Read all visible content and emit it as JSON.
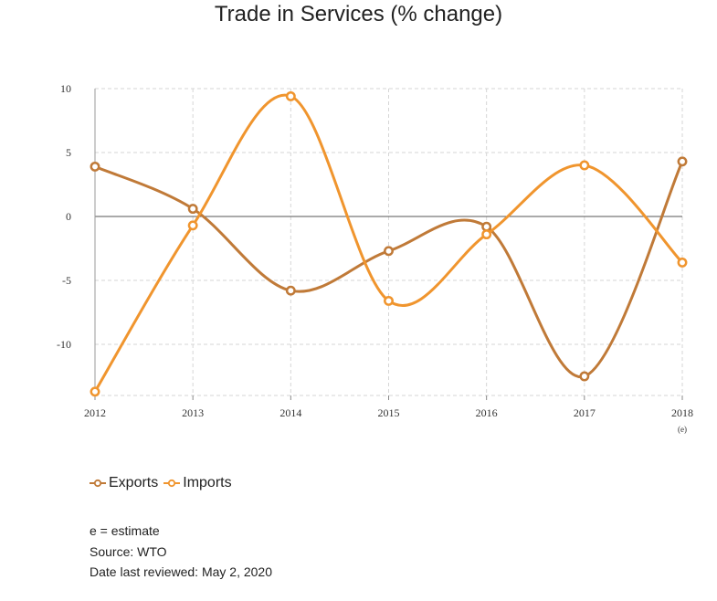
{
  "chart_data": {
    "type": "line",
    "title": "Trade in Services (% change)",
    "x": [
      "2012",
      "2013",
      "2014",
      "2015",
      "2016",
      "2017",
      "2018"
    ],
    "x_sub_labels": [
      "",
      "",
      "",
      "",
      "",
      "",
      "(e)"
    ],
    "ylim": [
      -14,
      10
    ],
    "yticks": [
      10,
      5,
      0,
      -5,
      -10
    ],
    "grid": true,
    "series": [
      {
        "name": "Exports",
        "color": "#c07a38",
        "values": [
          3.9,
          0.6,
          -5.8,
          -2.7,
          -0.8,
          -12.5,
          4.3
        ]
      },
      {
        "name": "Imports",
        "color": "#f0952e",
        "values": [
          -13.7,
          -0.7,
          9.4,
          -6.6,
          -1.4,
          4.0,
          -3.6
        ]
      }
    ],
    "legend_position": "bottom-left"
  },
  "notes": {
    "estimate": "e = estimate",
    "source": "Source: WTO",
    "reviewed": "Date last reviewed: May 2, 2020"
  }
}
